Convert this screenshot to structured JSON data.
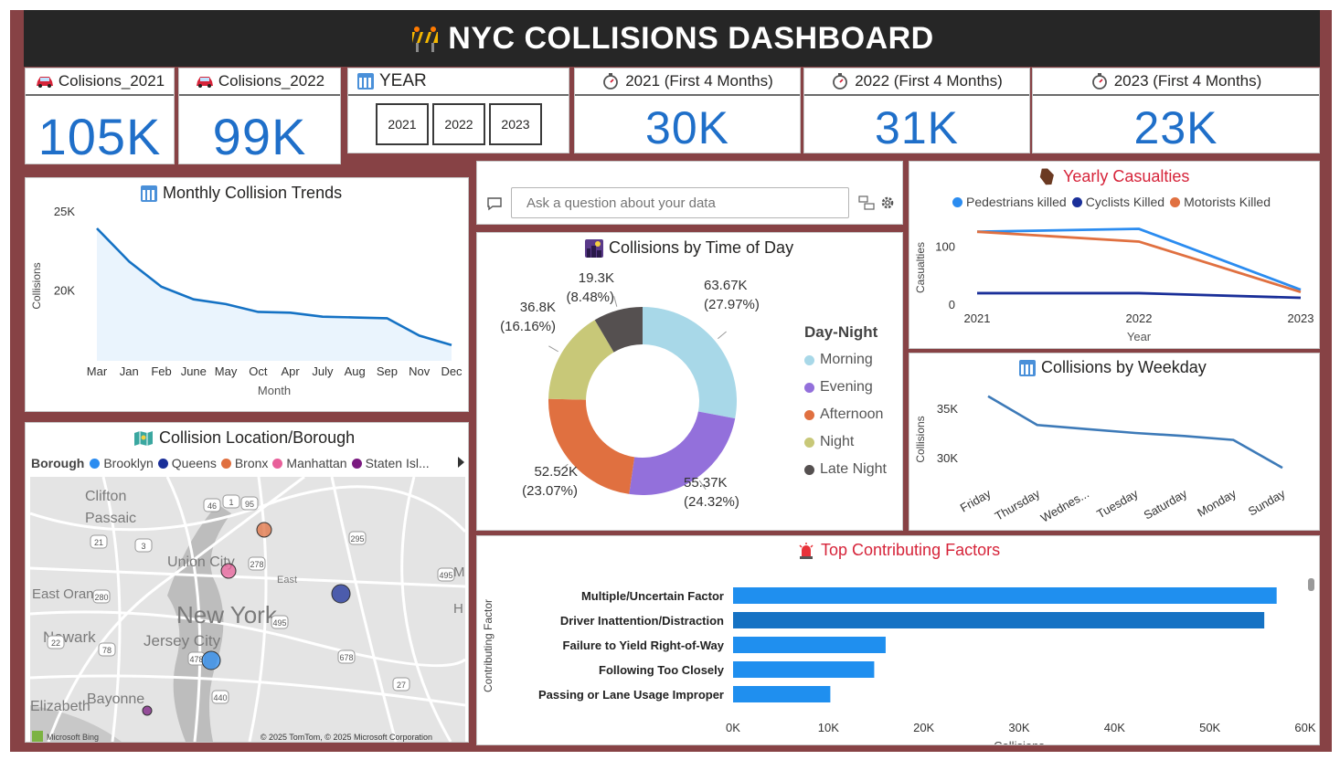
{
  "header": {
    "title": "NYC COLLISIONS DASHBOARD",
    "icon": "barrier-icon"
  },
  "cards": [
    {
      "title": "Colisions_2021",
      "value": "105K",
      "icon": "car-icon"
    },
    {
      "title": "Colisions_2022",
      "value": "99K",
      "icon": "car-icon"
    },
    {
      "title": "2021 (First 4 Months)",
      "value": "30K",
      "icon": "stopwatch-icon"
    },
    {
      "title": "2022 (First 4 Months)",
      "value": "31K",
      "icon": "stopwatch-icon"
    },
    {
      "title": "2023 (First 4 Months)",
      "value": "23K",
      "icon": "stopwatch-icon"
    }
  ],
  "year_slicer": {
    "title": "YEAR",
    "options": [
      "2021",
      "2022",
      "2023"
    ]
  },
  "qna": {
    "placeholder": "Ask a question about your data"
  },
  "colors": {
    "frame": "#874245",
    "accent": "#1f6fc9",
    "title_red": "#d6243a"
  },
  "monthly": {
    "title": "Monthly Collision Trends",
    "chart_data": {
      "type": "area",
      "categories": [
        "Mar",
        "Jan",
        "Feb",
        "June",
        "May",
        "Oct",
        "Apr",
        "July",
        "Aug",
        "Sep",
        "Nov",
        "Dec"
      ],
      "values": [
        23900,
        21800,
        20200,
        19400,
        19100,
        18600,
        18550,
        18300,
        18250,
        18200,
        17100,
        16500
      ],
      "xlabel": "Month",
      "ylabel": "Collisions",
      "yticks": [
        "25K",
        "20K"
      ],
      "ylim": [
        15500,
        25000
      ]
    }
  },
  "time_of_day": {
    "title": "Collisions by Time of Day",
    "legend_title": "Day-Night",
    "chart_data": {
      "type": "pie",
      "slices": [
        {
          "name": "Morning",
          "value": 63.67,
          "label": "63.67K",
          "pct": "(27.97%)",
          "color": "#a8d8e8"
        },
        {
          "name": "Evening",
          "value": 55.37,
          "label": "55.37K",
          "pct": "(24.32%)",
          "color": "#9370db"
        },
        {
          "name": "Afternoon",
          "value": 52.52,
          "label": "52.52K",
          "pct": "(23.07%)",
          "color": "#e07040"
        },
        {
          "name": "Night",
          "value": 36.8,
          "label": "36.8K",
          "pct": "(16.16%)",
          "color": "#c8c878"
        },
        {
          "name": "Late Night",
          "value": 19.3,
          "label": "19.3K",
          "pct": "(8.48%)",
          "color": "#555050"
        }
      ]
    }
  },
  "casualties": {
    "title": "Yearly Casualties",
    "chart_data": {
      "type": "line",
      "x": [
        "2021",
        "2022",
        "2023"
      ],
      "series": [
        {
          "name": "Pedestrians killed",
          "values": [
            125,
            130,
            25
          ],
          "color": "#2b8cf0"
        },
        {
          "name": "Cyclists Killed",
          "values": [
            19,
            19,
            11
          ],
          "color": "#1a2f99"
        },
        {
          "name": "Motorists Killed",
          "values": [
            125,
            108,
            21
          ],
          "color": "#e07040"
        }
      ],
      "xlabel": "Year",
      "ylabel": "Casualties",
      "yticks": [
        {
          "v": 100,
          "label": "100"
        },
        {
          "v": 0,
          "label": "0"
        }
      ],
      "ylim": [
        0,
        145
      ]
    }
  },
  "weekday": {
    "title": "Collisions by Weekday",
    "chart_data": {
      "type": "line",
      "categories": [
        "Friday",
        "Thursday",
        "Wednes...",
        "Tuesday",
        "Saturday",
        "Monday",
        "Sunday"
      ],
      "values": [
        36200,
        33300,
        32900,
        32500,
        32200,
        31800,
        29000
      ],
      "ylabel": "Collisions",
      "yticks": [
        {
          "v": 35000,
          "label": "35K"
        },
        {
          "v": 30000,
          "label": "30K"
        }
      ],
      "ylim": [
        28000,
        37000
      ]
    }
  },
  "borough": {
    "title": "Collision Location/Borough",
    "legend_title": "Borough",
    "legend": [
      {
        "name": "Brooklyn",
        "color": "#2b8cf0"
      },
      {
        "name": "Queens",
        "color": "#1a2f99"
      },
      {
        "name": "Bronx",
        "color": "#e07040"
      },
      {
        "name": "Manhattan",
        "color": "#e8609a"
      },
      {
        "name": "Staten Isl...",
        "color": "#7a1a80"
      }
    ],
    "map_labels": [
      "Clifton",
      "Passaic",
      "Union City",
      "New York",
      "East Orange",
      "Newark",
      "Jersey City",
      "Bayonne",
      "Elizabeth",
      "East"
    ],
    "road_labels": [
      "46",
      "1",
      "95",
      "21",
      "3",
      "295",
      "278",
      "280",
      "495",
      "22",
      "78",
      "495",
      "478",
      "678",
      "27",
      "440"
    ],
    "edge_letters": [
      "M",
      "H"
    ],
    "attribution_left": "Microsoft Bing",
    "attribution_right": "© 2025 TomTom, © 2025 Microsoft Corporation"
  },
  "factors": {
    "title": "Top Contributing Factors",
    "chart_data": {
      "type": "bar",
      "categories": [
        "Multiple/Uncertain Factor",
        "Driver Inattention/Distraction",
        "Failure to Yield Right-of-Way",
        "Following Too Closely",
        "Passing or Lane Usage Improper"
      ],
      "values": [
        57000,
        55700,
        16000,
        14800,
        10200
      ],
      "xlabel": "Collisions",
      "ylabel": "Contributing Factor",
      "xticks": [
        "0K",
        "10K",
        "20K",
        "30K",
        "40K",
        "50K",
        "60K"
      ],
      "xlim": [
        0,
        60000
      ]
    }
  }
}
